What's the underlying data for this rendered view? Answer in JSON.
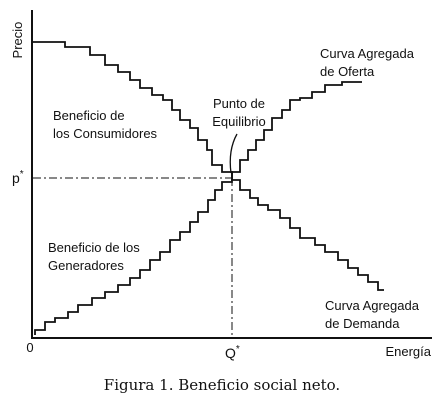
{
  "axes": {
    "y_label": "Precio",
    "x_label": "Energía",
    "origin": "0",
    "price_marker": {
      "base": "p",
      "sup": "*"
    },
    "quantity_marker": {
      "base": "Q",
      "sup": "*"
    }
  },
  "annotations": {
    "supply_curve": [
      "Curva Agregada",
      "de Oferta"
    ],
    "consumer_benefit": [
      "Beneficio de",
      "los Consumidores"
    ],
    "equilibrium": [
      "Punto de",
      "Equilibrio"
    ],
    "producer_benefit": [
      "Beneficio de los",
      "Generadores"
    ],
    "demand_curve": [
      "Curva Agregada",
      "de Demanda"
    ]
  },
  "caption": "Figura 1. Beneficio social neto."
}
